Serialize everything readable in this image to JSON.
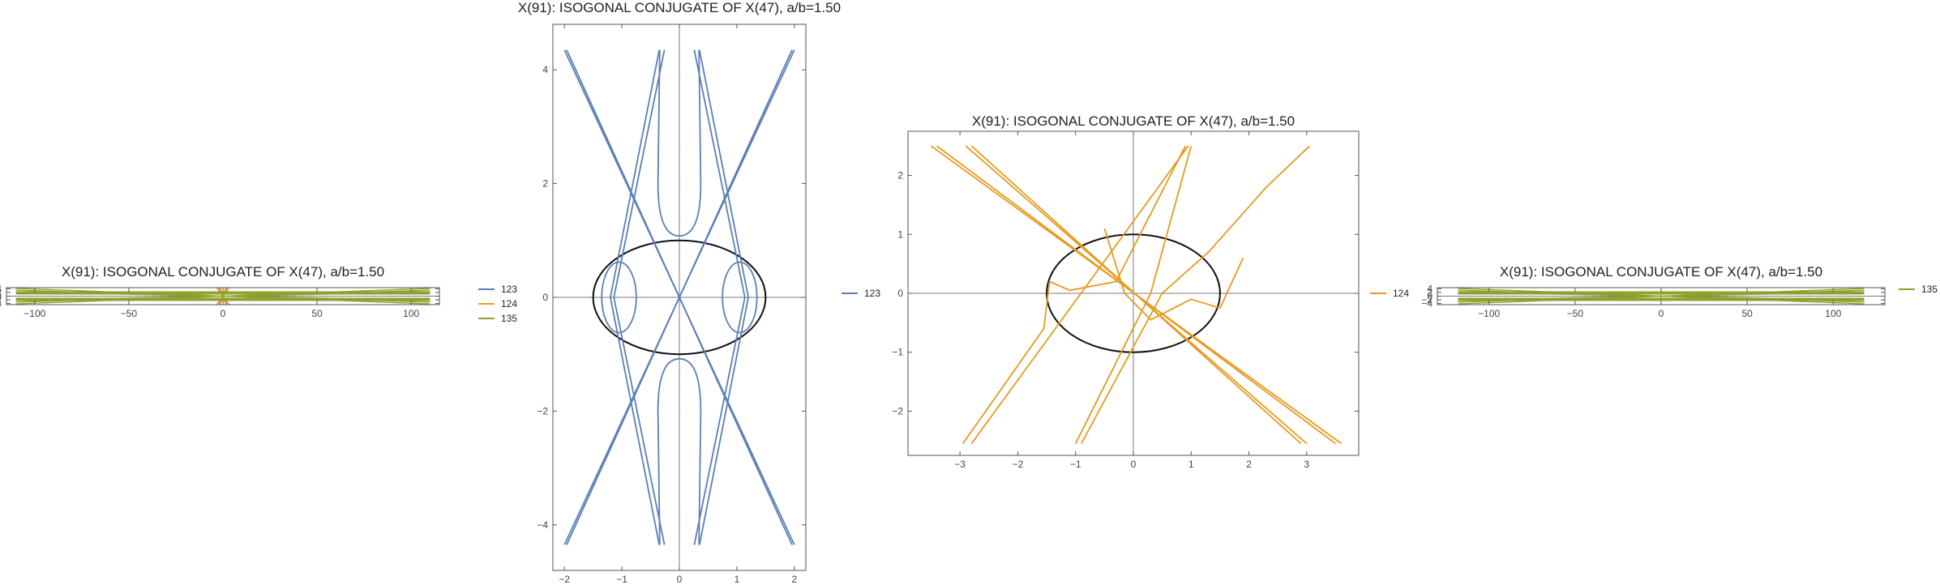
{
  "colors": {
    "c123": "#5b7fb5",
    "c124": "#e69a1f",
    "c135": "#8ea12c",
    "ellipse": "#111111"
  },
  "chart_data": [
    {
      "id": "p1",
      "type": "line",
      "title": "X(91): ISOGONAL CONJUGATE OF X(47), a/b=1.50",
      "xlabel": "",
      "ylabel": "",
      "xlim": [
        -115,
        115
      ],
      "ylim": [
        -4.6,
        4.6
      ],
      "xticks": [
        -100,
        -50,
        0,
        50,
        100
      ],
      "yticks": [
        -4,
        -2,
        0,
        2,
        4
      ],
      "grid": false,
      "legend_position": "right",
      "legend": [
        {
          "name": "123",
          "color": "#5b7fb5"
        },
        {
          "name": "124",
          "color": "#e69a1f"
        },
        {
          "name": "135",
          "color": "#8ea12c"
        }
      ],
      "series": [
        {
          "name": "123",
          "color": "#5b7fb5",
          "curves": "asymptotic lines |y|≈2.15|x| and ovals near origin"
        },
        {
          "name": "124",
          "color": "#e69a1f",
          "curves": "lines crossing near origin"
        },
        {
          "name": "135",
          "color": "#8ea12c",
          "curves": "near-horizontal lines spanning x∈[-110,110]"
        }
      ]
    },
    {
      "id": "p2",
      "type": "line",
      "title": "X(91): ISOGONAL CONJUGATE OF X(47), a/b=1.50",
      "xlabel": "",
      "ylabel": "",
      "xlim": [
        -2.2,
        2.2
      ],
      "ylim": [
        -4.8,
        4.8
      ],
      "xticks": [
        -2,
        -1,
        0,
        1,
        2
      ],
      "yticks": [
        -4,
        -2,
        0,
        2,
        4
      ],
      "grid": false,
      "legend_position": "right",
      "legend": [
        {
          "name": "123",
          "color": "#5b7fb5"
        }
      ],
      "ellipse": {
        "a": 1.5,
        "b": 1.0,
        "color": "#111111"
      },
      "series": [
        {
          "name": "123",
          "color": "#5b7fb5",
          "lines": [
            [
              [
                -2.0,
                4.35
              ],
              [
                2.0,
                -4.35
              ]
            ],
            [
              [
                -1.96,
                4.35
              ],
              [
                1.96,
                -4.35
              ]
            ],
            [
              [
                2.0,
                4.35
              ],
              [
                -2.0,
                -4.35
              ]
            ],
            [
              [
                1.96,
                4.35
              ],
              [
                -1.96,
                -4.35
              ]
            ],
            [
              [
                -0.35,
                4.35
              ],
              [
                -1.2,
                0.0
              ],
              [
                -0.35,
                -4.35
              ]
            ],
            [
              [
                0.35,
                4.35
              ],
              [
                1.2,
                0.0
              ],
              [
                0.35,
                -4.35
              ]
            ],
            [
              [
                0.26,
                4.35
              ],
              [
                1.14,
                0.0
              ],
              [
                0.26,
                -4.35
              ]
            ],
            [
              [
                -0.26,
                4.35
              ],
              [
                -1.14,
                0.0
              ],
              [
                -0.26,
                -4.35
              ]
            ]
          ],
          "ovals": [
            {
              "cx": -1.05,
              "cy": 0,
              "rx": 0.3,
              "ry": 0.62
            },
            {
              "cx": 1.05,
              "cy": 0,
              "rx": 0.3,
              "ry": 0.62
            }
          ],
          "branches": [
            {
              "side": "top",
              "vertex_y": 1.08,
              "half_width": 0.62,
              "top_y": 2.0
            },
            {
              "side": "bottom",
              "vertex_y": -1.08,
              "half_width": 0.62,
              "top_y": -2.0
            }
          ]
        }
      ]
    },
    {
      "id": "p3",
      "type": "line",
      "title": "X(91): ISOGONAL CONJUGATE OF X(47), a/b=1.50",
      "xlabel": "",
      "ylabel": "",
      "xlim": [
        -3.9,
        3.9
      ],
      "ylim": [
        -2.75,
        2.75
      ],
      "xticks": [
        -3,
        -2,
        -1,
        0,
        1,
        2,
        3
      ],
      "yticks": [
        -2,
        -1,
        0,
        1,
        2
      ],
      "grid": false,
      "legend_position": "right",
      "legend": [
        {
          "name": "124",
          "color": "#e69a1f"
        }
      ],
      "ellipse": {
        "a": 1.5,
        "b": 1.0,
        "color": "#111111"
      },
      "series": [
        {
          "name": "124",
          "color": "#e69a1f",
          "lines": [
            [
              [
                -3.5,
                2.5
              ],
              [
                3.6,
                -2.55
              ]
            ],
            [
              [
                -3.4,
                2.5
              ],
              [
                3.5,
                -2.55
              ]
            ],
            [
              [
                -2.9,
                2.5
              ],
              [
                3.0,
                -2.55
              ]
            ],
            [
              [
                -2.8,
                2.5
              ],
              [
                2.9,
                -2.55
              ]
            ],
            [
              [
                -2.95,
                -2.55
              ],
              [
                -1.55,
                -0.6
              ],
              [
                -1.45,
                0.2
              ],
              [
                -1.1,
                0.05
              ],
              [
                -0.3,
                0.2
              ],
              [
                0.9,
                2.5
              ]
            ],
            [
              [
                -2.8,
                -2.55
              ],
              [
                0.95,
                2.5
              ]
            ],
            [
              [
                -1.0,
                -2.55
              ],
              [
                0.3,
                0.0
              ],
              [
                1.0,
                2.5
              ]
            ],
            [
              [
                -0.9,
                -2.55
              ],
              [
                0.5,
                0.0
              ],
              [
                1.3,
                0.7
              ],
              [
                2.3,
                1.8
              ],
              [
                3.05,
                2.5
              ]
            ],
            [
              [
                -0.5,
                1.1
              ],
              [
                -0.15,
                0.0
              ],
              [
                0.3,
                -0.45
              ],
              [
                1.0,
                -0.1
              ],
              [
                1.5,
                -0.25
              ],
              [
                1.9,
                0.6
              ]
            ]
          ]
        }
      ]
    },
    {
      "id": "p4",
      "type": "line",
      "title": "X(91): ISOGONAL CONJUGATE OF X(47), a/b=1.50",
      "xlabel": "",
      "ylabel": "",
      "xlim": [
        -130,
        130
      ],
      "ylim": [
        -4.6,
        4.6
      ],
      "xticks": [
        -100,
        -50,
        0,
        50,
        100
      ],
      "yticks": [
        -4,
        -2,
        0,
        2,
        4
      ],
      "grid": false,
      "legend_position": "right",
      "legend": [
        {
          "name": "135",
          "color": "#8ea12c"
        }
      ],
      "series": [
        {
          "name": "135",
          "color": "#8ea12c",
          "curves": "near-horizontal lines spanning x∈[-118,118]"
        }
      ]
    }
  ]
}
